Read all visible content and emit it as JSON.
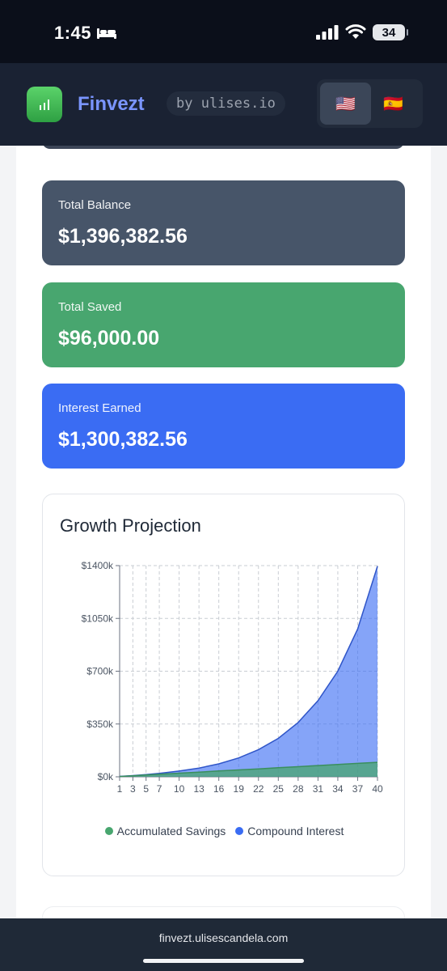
{
  "status_bar": {
    "time": "1:45",
    "battery": "34"
  },
  "header": {
    "app_name": "Finvezt",
    "byline": "by ulises.io",
    "languages": [
      "🇺🇸",
      "🇪🇸"
    ]
  },
  "summary": {
    "total_balance_label": "Total Balance",
    "total_balance": "$1,396,382.56",
    "total_saved_label": "Total Saved",
    "total_saved": "$96,000.00",
    "interest_earned_label": "Interest Earned",
    "interest_earned": "$1,300,382.56"
  },
  "chart_title": "Growth Projection",
  "chart_data": {
    "type": "area",
    "x": [
      1,
      3,
      5,
      7,
      10,
      13,
      16,
      19,
      22,
      25,
      28,
      31,
      34,
      37,
      40
    ],
    "series": [
      {
        "name": "Accumulated Savings",
        "color": "#48a66f",
        "values": [
          2400,
          7200,
          12000,
          16800,
          24000,
          31200,
          38400,
          45600,
          52800,
          60000,
          67200,
          74400,
          81600,
          88800,
          96000
        ]
      },
      {
        "name": "Compound Interest",
        "color": "#3a6cf3",
        "values": [
          2475,
          8000,
          14500,
          22500,
          38000,
          58000,
          86000,
          125000,
          180000,
          255000,
          360000,
          505000,
          700000,
          980000,
          1396382
        ]
      }
    ],
    "ylim": [
      0,
      1400000
    ],
    "y_ticks": [
      "$0k",
      "$350k",
      "$700k",
      "$1050k",
      "$1400k"
    ],
    "x_ticks": [
      "1",
      "3",
      "5",
      "7",
      "10",
      "13",
      "16",
      "19",
      "22",
      "25",
      "28",
      "31",
      "34",
      "37",
      "40"
    ],
    "grid": true,
    "legend_position": "bottom"
  },
  "footer": {
    "url": "finvezt.ulisescandela.com"
  }
}
